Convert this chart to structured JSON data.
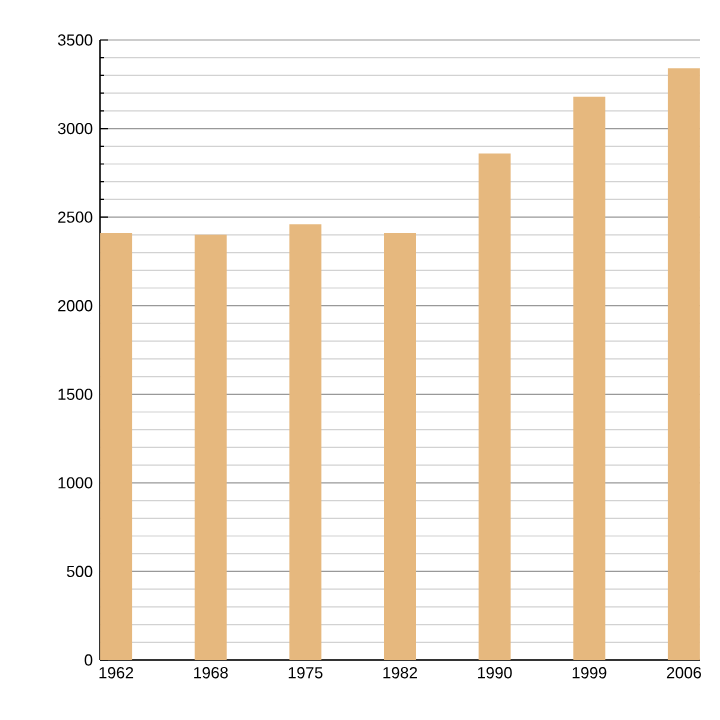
{
  "chart_data": {
    "type": "bar",
    "categories": [
      "1962",
      "1968",
      "1975",
      "1982",
      "1990",
      "1999",
      "2006"
    ],
    "values": [
      2410,
      2400,
      2460,
      2410,
      2860,
      3180,
      3340
    ],
    "color": "#e6b87e",
    "ylim": [
      0,
      3500
    ],
    "yticks": [
      0,
      500,
      1000,
      1500,
      2000,
      2500,
      3000,
      3500
    ],
    "grid": "y"
  }
}
